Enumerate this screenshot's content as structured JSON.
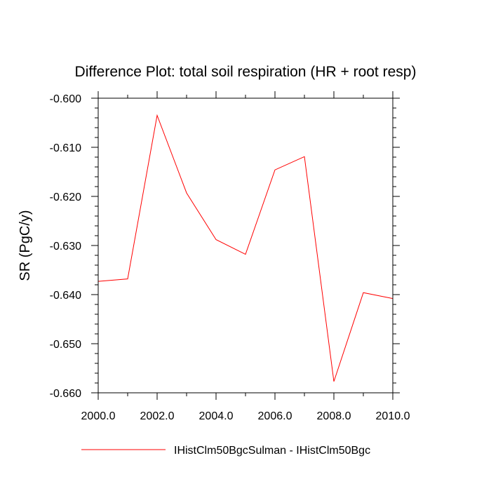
{
  "chart_data": {
    "type": "line",
    "title": "Difference Plot: total soil respiration (HR + root resp)",
    "xlabel": "",
    "ylabel": "SR  (PgC/y)",
    "xlim": [
      2000.0,
      2010.0
    ],
    "ylim": [
      -0.66,
      -0.6
    ],
    "x_ticks": [
      2000.0,
      2002.0,
      2004.0,
      2006.0,
      2008.0,
      2010.0
    ],
    "x_tick_labels": [
      "2000.0",
      "2002.0",
      "2004.0",
      "2006.0",
      "2008.0",
      "2010.0"
    ],
    "y_ticks": [
      -0.6,
      -0.61,
      -0.62,
      -0.63,
      -0.64,
      -0.65,
      -0.66
    ],
    "y_tick_labels": [
      "-0.600",
      "-0.610",
      "-0.620",
      "-0.630",
      "-0.640",
      "-0.650",
      "-0.660"
    ],
    "grid": false,
    "legend_position": "bottom",
    "series": [
      {
        "name": "IHistClm50BgcSulman - IHistClm50Bgc",
        "color": "#ff0000",
        "x": [
          2000,
          2001,
          2002,
          2003,
          2004,
          2005,
          2006,
          2007,
          2008,
          2009,
          2010
        ],
        "y": [
          -0.6373,
          -0.6368,
          -0.6035,
          -0.6193,
          -0.6288,
          -0.6318,
          -0.6146,
          -0.6119,
          -0.6577,
          -0.6396,
          -0.6408
        ]
      }
    ]
  }
}
